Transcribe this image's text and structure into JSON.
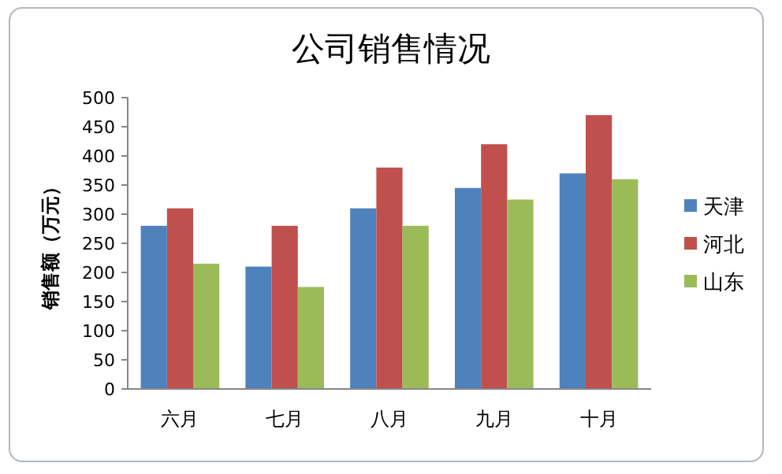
{
  "chart_data": {
    "type": "bar",
    "title": "公司销售情况",
    "ylabel": "销售额（万元）",
    "categories": [
      "六月",
      "七月",
      "八月",
      "九月",
      "十月"
    ],
    "series": [
      {
        "name": "天津",
        "color": "#4f81bd",
        "values": [
          280,
          210,
          310,
          345,
          370
        ]
      },
      {
        "name": "河北",
        "color": "#c0504d",
        "values": [
          310,
          280,
          380,
          420,
          470
        ]
      },
      {
        "name": "山东",
        "color": "#9bbb59",
        "values": [
          215,
          175,
          280,
          325,
          360
        ]
      }
    ],
    "ylim": [
      0,
      500
    ],
    "yticks": [
      0,
      50,
      100,
      150,
      200,
      250,
      300,
      350,
      400,
      450,
      500
    ],
    "grid": false,
    "legend": "right"
  }
}
